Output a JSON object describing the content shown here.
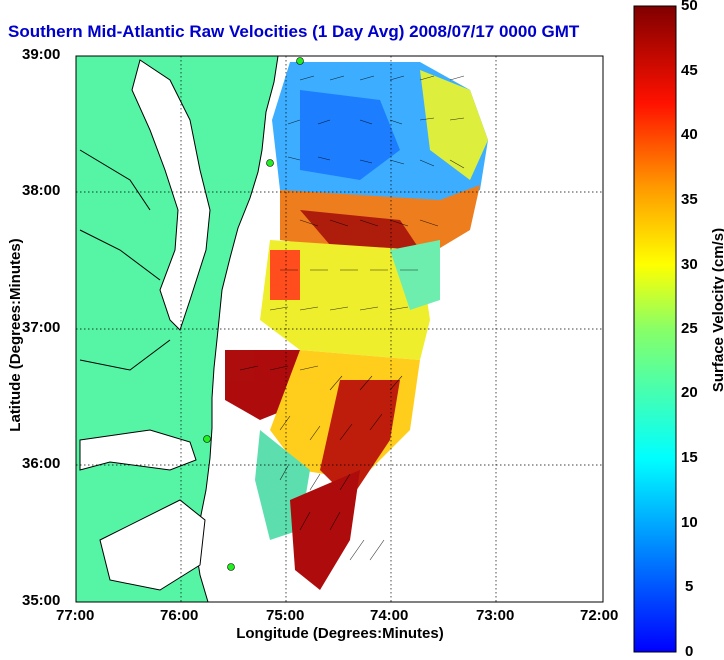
{
  "title": "Southern Mid-Atlantic Raw Velocities (1 Day Avg) 2008/07/17 0000 GMT",
  "axes": {
    "ylabel": "Latitude (Degrees:Minutes)",
    "xlabel": "Longitude (Degrees:Minutes)",
    "y_ticks": [
      "39:00",
      "38:00",
      "37:00",
      "36:00",
      "35:00"
    ],
    "x_ticks": [
      "77:00",
      "76:00",
      "75:00",
      "74:00",
      "73:00",
      "72:00"
    ]
  },
  "colorbar": {
    "label": "Surface Velocity (cm/s)",
    "ticks": [
      "50",
      "45",
      "40",
      "35",
      "30",
      "25",
      "20",
      "15",
      "10",
      "5",
      "0"
    ],
    "range": [
      0,
      50
    ],
    "colormap": "jet"
  },
  "colors": {
    "land": "#55f5a5",
    "title": "#0000cc",
    "arrows": "#000000",
    "stations": "#22ee22"
  },
  "map": {
    "lon_range": [
      77,
      72
    ],
    "lat_range": [
      35,
      39
    ],
    "grid": "dotted"
  }
}
